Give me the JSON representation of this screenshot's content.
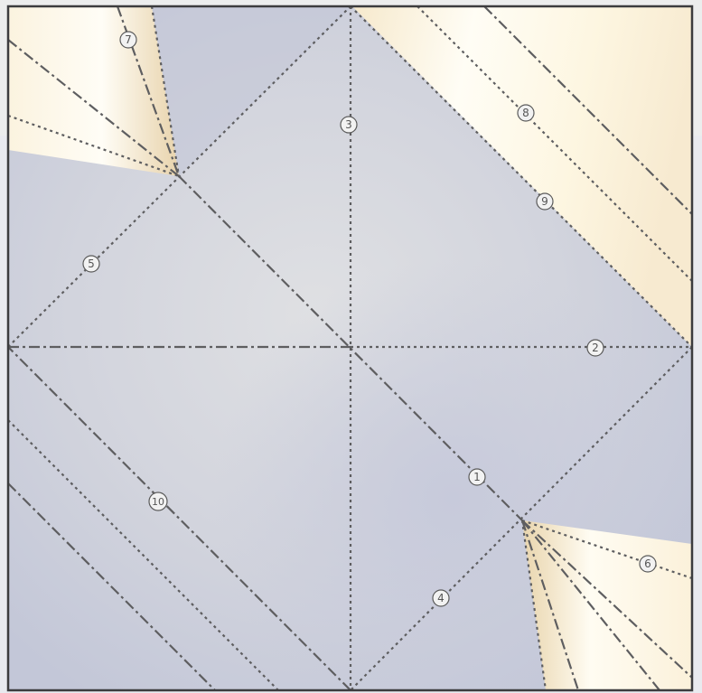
{
  "diagram": {
    "colors": {
      "paper_blue": "#c5c9da",
      "paper_center": "#dcdde1",
      "flap_cream": "#fdf7e6",
      "flap_cream_dark": "#e9d6b2",
      "fold_line": "#5e5e60",
      "border": "#3c3c3e"
    },
    "step_labels": [
      "1",
      "2",
      "3",
      "4",
      "5",
      "6",
      "7",
      "8",
      "9",
      "10"
    ]
  }
}
